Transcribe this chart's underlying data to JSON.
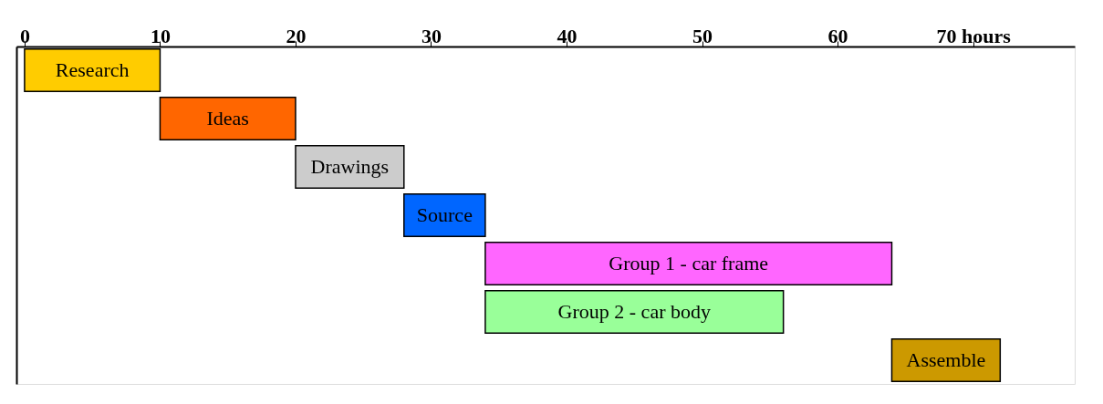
{
  "chart_data": {
    "type": "bar",
    "orientation": "horizontal",
    "tick_labels": "x",
    "grid": false,
    "categories": [
      "Research",
      "Ideas",
      "Drawings",
      "Source",
      "Group 1 - car frame",
      "Group 2 - car body",
      "Assemble"
    ],
    "base": [
      0,
      10,
      20,
      28,
      34,
      34,
      64
    ],
    "values": [
      10,
      10,
      8,
      6,
      30,
      22,
      8
    ],
    "colors": [
      "#ffcc00",
      "#ff6600",
      "#cccccc",
      "#0066ff",
      "#ff66ff",
      "#99ff99",
      "#cc9900"
    ],
    "xlim": [
      -0.6,
      77.5
    ],
    "xticks": [
      0,
      10,
      20,
      30,
      40,
      50,
      60,
      {
        "value": 70,
        "label": "70 hours"
      }
    ]
  }
}
